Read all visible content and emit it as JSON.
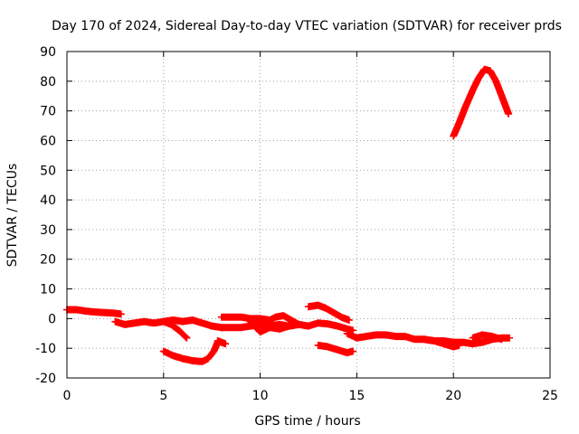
{
  "chart_data": {
    "type": "scatter",
    "title": "Day 170 of 2024, Sidereal Day-to-day VTEC variation (SDTVAR) for receiver prds",
    "xlabel": "GPS time / hours",
    "ylabel": "SDTVAR / TECUs",
    "xlim": [
      0,
      25
    ],
    "ylim": [
      -20,
      90
    ],
    "xticks": [
      0,
      5,
      10,
      15,
      20,
      25
    ],
    "yticks": [
      -20,
      -10,
      0,
      10,
      20,
      30,
      40,
      50,
      60,
      70,
      80,
      90
    ],
    "grid": true,
    "marker": "plus",
    "color": "#ff0000",
    "series": [
      {
        "name": "arc-1",
        "x": [
          0.0,
          0.5,
          1.0,
          1.5,
          2.0,
          2.5,
          2.8
        ],
        "y": [
          3,
          3,
          2.5,
          2.2,
          2,
          1.8,
          1.5
        ]
      },
      {
        "name": "arc-2",
        "x": [
          2.5,
          3.0,
          3.5,
          4.0,
          4.5,
          5.0,
          5.5,
          6.0,
          6.5,
          7.0,
          7.5,
          8.0
        ],
        "y": [
          -1,
          -2,
          -1.5,
          -1,
          -1.5,
          -1,
          -0.5,
          -1,
          -0.5,
          -1.5,
          -2.5,
          -3
        ]
      },
      {
        "name": "arc-3",
        "x": [
          5.0,
          5.4,
          5.8,
          6.2
        ],
        "y": [
          -1,
          -2,
          -4,
          -6.5
        ]
      },
      {
        "name": "arc-4",
        "x": [
          5.0,
          5.5,
          6.0,
          6.5,
          7.0,
          7.3,
          7.6,
          7.8
        ],
        "y": [
          -11,
          -12.5,
          -13.5,
          -14.2,
          -14.5,
          -13.5,
          -11,
          -8
        ]
      },
      {
        "name": "arc-5",
        "x": [
          7.8,
          8.2
        ],
        "y": [
          -7.5,
          -8.5
        ]
      },
      {
        "name": "arc-6",
        "x": [
          8.0,
          8.5,
          9.0,
          9.5,
          10.0,
          10.5,
          11.0,
          11.5,
          12.0,
          12.5,
          13.0,
          13.5,
          14.0,
          14.5,
          14.8
        ],
        "y": [
          -3,
          -3,
          -3,
          -2.5,
          -2,
          -2.5,
          -2,
          -2.5,
          -2,
          -2.5,
          -1.5,
          -1.8,
          -2.5,
          -3.5,
          -4
        ]
      },
      {
        "name": "arc-7",
        "x": [
          8.0,
          8.5,
          9.0,
          9.5,
          10.0,
          10.5,
          10.8,
          11.2,
          11.6,
          12.0
        ],
        "y": [
          0.5,
          0.5,
          0.5,
          0,
          0,
          -0.5,
          0.5,
          1,
          -0.5,
          -2
        ]
      },
      {
        "name": "arc-8",
        "x": [
          9.5,
          10.0,
          10.5,
          11.0,
          11.5,
          12.0
        ],
        "y": [
          -1,
          -4.5,
          -3,
          -3.5,
          -2.5,
          -2
        ]
      },
      {
        "name": "arc-9",
        "x": [
          12.5,
          13.0,
          13.4,
          13.8,
          14.2,
          14.6
        ],
        "y": [
          4,
          4.5,
          3.5,
          2,
          0.5,
          -0.5
        ]
      },
      {
        "name": "arc-10",
        "x": [
          13.0,
          13.5,
          14.0,
          14.5,
          14.8
        ],
        "y": [
          -9,
          -9.5,
          -10.5,
          -11.5,
          -11
        ]
      },
      {
        "name": "arc-11",
        "x": [
          14.5,
          15.0,
          15.5,
          16.0,
          16.5,
          17.0,
          17.5,
          18.0,
          18.5,
          19.0,
          19.5,
          20.0,
          20.5,
          21.0,
          21.5,
          22.0,
          22.5,
          22.9
        ],
        "y": [
          -5,
          -6.5,
          -6,
          -5.5,
          -5.5,
          -6,
          -6,
          -7,
          -7,
          -7.5,
          -7.5,
          -8,
          -8,
          -8.5,
          -8,
          -7,
          -6.5,
          -6.5
        ]
      },
      {
        "name": "arc-12",
        "x": [
          18.5,
          19.0,
          19.5,
          20.0,
          20.3
        ],
        "y": [
          -7,
          -7.5,
          -8.5,
          -9.5,
          -9
        ]
      },
      {
        "name": "arc-13",
        "x": [
          21.0,
          21.5,
          22.0,
          22.5
        ],
        "y": [
          -6.5,
          -5.5,
          -6,
          -7
        ]
      },
      {
        "name": "arc-14",
        "x": [
          20.0,
          20.3,
          20.6,
          21.0,
          21.3,
          21.6,
          21.9,
          22.2,
          22.5,
          22.85
        ],
        "y": [
          61.5,
          66,
          71,
          77,
          81,
          84,
          83.5,
          80,
          75,
          69
        ]
      }
    ]
  }
}
